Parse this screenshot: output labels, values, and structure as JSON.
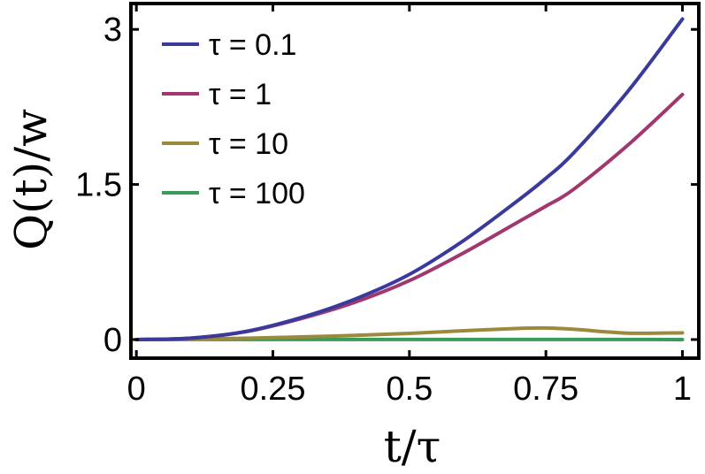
{
  "chart_data": {
    "type": "line",
    "xlabel": "t/τ",
    "ylabel": "Q(t)/w",
    "xlim": [
      -0.01,
      1.03
    ],
    "ylim": [
      -0.18,
      3.25
    ],
    "x_ticks": [
      "0",
      "0.25",
      "0.5",
      "0.75",
      "1"
    ],
    "x_tick_values": [
      0,
      0.25,
      0.5,
      0.75,
      1
    ],
    "y_ticks": [
      "0",
      "1.5",
      "3"
    ],
    "y_tick_values": [
      0,
      1.5,
      3
    ],
    "legend_position": "top-left",
    "grid": false,
    "x": [
      0,
      0.1,
      0.2,
      0.3,
      0.4,
      0.5,
      0.6,
      0.7,
      0.75,
      0.8,
      0.9,
      1.0
    ],
    "series": [
      {
        "name": "τ = 0.1",
        "color": "#3a3a9c",
        "values": [
          0,
          0.014,
          0.078,
          0.21,
          0.39,
          0.63,
          0.96,
          1.35,
          1.56,
          1.8,
          2.4,
          3.1
        ]
      },
      {
        "name": "τ = 1",
        "color": "#a0386f",
        "values": [
          0,
          0.014,
          0.075,
          0.2,
          0.36,
          0.57,
          0.84,
          1.14,
          1.29,
          1.45,
          1.88,
          2.37
        ]
      },
      {
        "name": "τ = 10",
        "color": "#9a8a3c",
        "values": [
          0,
          0.004,
          0.012,
          0.025,
          0.04,
          0.06,
          0.085,
          0.108,
          0.112,
          0.1,
          0.062,
          0.065
        ]
      },
      {
        "name": "τ = 100",
        "color": "#3a9a58",
        "values": [
          0,
          0.0002,
          0.0004,
          0.0005,
          0.0006,
          0.0006,
          0.0005,
          0.0004,
          0.0004,
          0.0003,
          0.0002,
          0.0001
        ]
      }
    ]
  }
}
